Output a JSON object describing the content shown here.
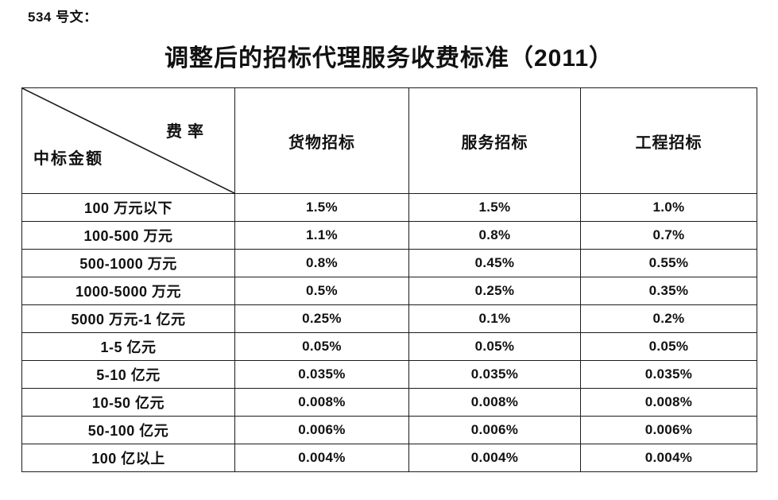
{
  "doc": {
    "label": "534 号文：",
    "title": "调整后的招标代理服务收费标准（2011）"
  },
  "table": {
    "corner": {
      "top_right": "费率",
      "bottom_left": "中标金额"
    },
    "columns": [
      "货物招标",
      "服务招标",
      "工程招标"
    ],
    "rows": [
      {
        "amount": "100 万元以下",
        "rates": [
          "1.5%",
          "1.5%",
          "1.0%"
        ]
      },
      {
        "amount": "100-500 万元",
        "rates": [
          "1.1%",
          "0.8%",
          "0.7%"
        ]
      },
      {
        "amount": "500-1000 万元",
        "rates": [
          "0.8%",
          "0.45%",
          "0.55%"
        ]
      },
      {
        "amount": "1000-5000 万元",
        "rates": [
          "0.5%",
          "0.25%",
          "0.35%"
        ]
      },
      {
        "amount": "5000 万元-1 亿元",
        "rates": [
          "0.25%",
          "0.1%",
          "0.2%"
        ]
      },
      {
        "amount": "1-5 亿元",
        "rates": [
          "0.05%",
          "0.05%",
          "0.05%"
        ]
      },
      {
        "amount": "5-10 亿元",
        "rates": [
          "0.035%",
          "0.035%",
          "0.035%"
        ]
      },
      {
        "amount": "10-50 亿元",
        "rates": [
          "0.008%",
          "0.008%",
          "0.008%"
        ]
      },
      {
        "amount": "50-100 亿元",
        "rates": [
          "0.006%",
          "0.006%",
          "0.006%"
        ]
      },
      {
        "amount": "100 亿以上",
        "rates": [
          "0.004%",
          "0.004%",
          "0.004%"
        ]
      }
    ],
    "border_color": "#1c1c1c",
    "text_color": "#111111",
    "background_color": "#ffffff"
  }
}
